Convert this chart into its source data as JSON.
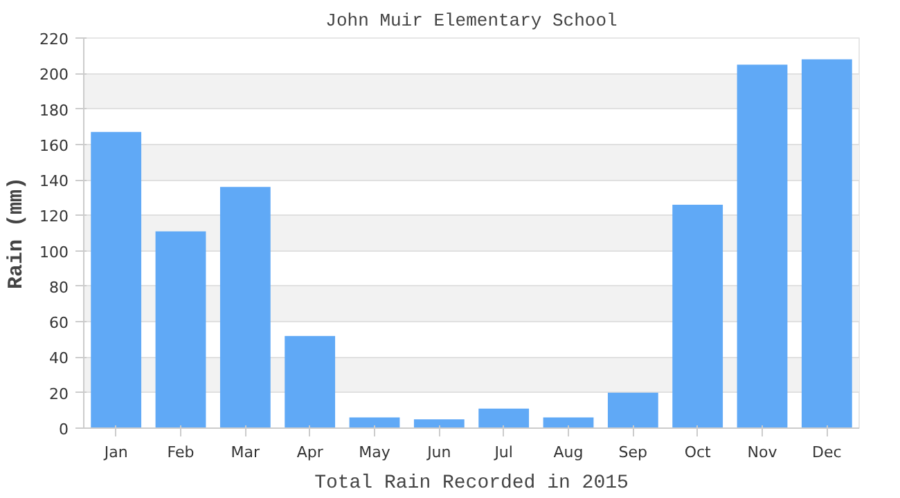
{
  "chart_data": {
    "type": "bar",
    "title": "John Muir Elementary School",
    "xlabel": "Total Rain Recorded in 2015",
    "ylabel": "Rain (mm)",
    "categories": [
      "Jan",
      "Feb",
      "Mar",
      "Apr",
      "May",
      "Jun",
      "Jul",
      "Aug",
      "Sep",
      "Oct",
      "Nov",
      "Dec"
    ],
    "values": [
      167,
      111,
      136,
      52,
      6,
      5,
      11,
      6,
      20,
      126,
      205,
      208
    ],
    "color": "#60a9f6",
    "ylim": [
      0,
      220
    ],
    "yticks": [
      0,
      20,
      40,
      60,
      80,
      100,
      120,
      140,
      160,
      180,
      200,
      220
    ],
    "grid": "y"
  }
}
